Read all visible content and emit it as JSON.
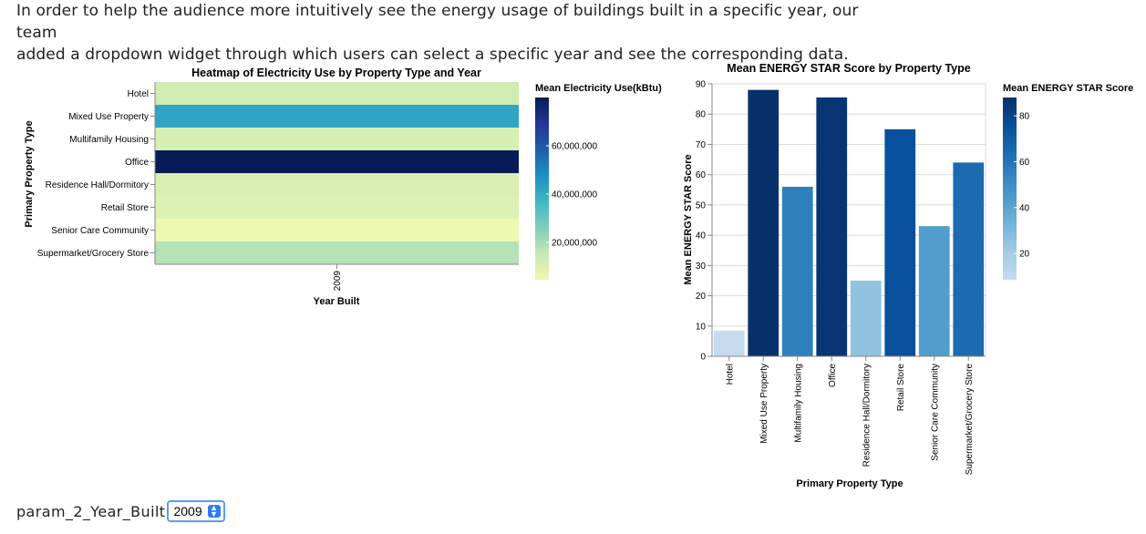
{
  "intro": {
    "line1": "In order to help the audience more intuitively see the energy usage of buildings built in a specific year, our team",
    "line2": "added a dropdown widget through which users can select a specific year and see the corresponding data."
  },
  "control": {
    "label": "param_2_Year_Built",
    "value": "2009"
  },
  "colors": {
    "select_border": "#5b9cf2",
    "select_chevron": "#2f7cf6"
  },
  "chart_data": [
    {
      "type": "heatmap",
      "title": "Heatmap of Electricity Use by Property Type and Year",
      "xlabel": "Year Built",
      "ylabel": "Primary Property Type",
      "x_categories": [
        "2009"
      ],
      "y_categories": [
        "Hotel",
        "Mixed Use Property",
        "Multifamily Housing",
        "Office",
        "Residence Hall/Dormitory",
        "Retail Store",
        "Senior Care Community",
        "Supermarket/Grocery Store"
      ],
      "values": [
        13000000,
        42000000,
        11000000,
        80000000,
        10000000,
        9000000,
        4500000,
        18000000
      ],
      "legend": {
        "title": "Mean Electricity Use(kBtu)",
        "ticks": [
          20000000,
          40000000,
          60000000
        ],
        "tick_labels": [
          "20,000,000",
          "40,000,000",
          "60,000,000"
        ],
        "domain": [
          4500000,
          80000000
        ],
        "color_scheme": [
          "#edf8b1",
          "#c7e9b4",
          "#7fcdbb",
          "#41b6c4",
          "#1d91c0",
          "#225ea8",
          "#253494",
          "#081d58"
        ]
      }
    },
    {
      "type": "bar",
      "title": "Mean ENERGY STAR Score by Property Type",
      "xlabel": "Primary Property Type",
      "ylabel": "Mean ENERGY STAR Score",
      "categories": [
        "Hotel",
        "Mixed Use Property",
        "Multifamily Housing",
        "Office",
        "Residence Hall/Dormitory",
        "Retail Store",
        "Senior Care Community",
        "Supermarket/Grocery Store"
      ],
      "values": [
        8.5,
        88,
        56,
        85.5,
        25,
        75,
        43,
        64
      ],
      "ylim": [
        0,
        90
      ],
      "yticks": [
        0,
        10,
        20,
        30,
        40,
        50,
        60,
        70,
        80,
        90
      ],
      "grid": true,
      "legend": {
        "title": "Mean ENERGY STAR Score",
        "ticks": [
          20,
          40,
          60,
          80
        ],
        "domain": [
          8.5,
          88
        ],
        "color_scheme": [
          "#c6dbef",
          "#9ecae1",
          "#6baed6",
          "#4292c6",
          "#2171b5",
          "#08519c",
          "#08306b"
        ]
      }
    }
  ]
}
